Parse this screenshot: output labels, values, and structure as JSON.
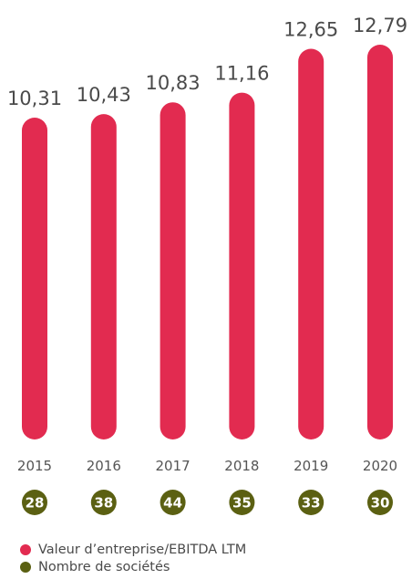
{
  "chart_data": {
    "type": "bar",
    "categories": [
      "2015",
      "2016",
      "2017",
      "2018",
      "2019",
      "2020"
    ],
    "series": [
      {
        "name": "Valeur d’entreprise/EBITDA LTM",
        "values": [
          10.31,
          10.43,
          10.83,
          11.16,
          12.65,
          12.79
        ],
        "labels": [
          "10,31",
          "10,43",
          "10,83",
          "11,16",
          "12,65",
          "12,79"
        ],
        "color": "#e22b50"
      },
      {
        "name": "Nombre de sociétés",
        "values": [
          28,
          38,
          44,
          35,
          33,
          30
        ],
        "color": "#5b6012"
      }
    ],
    "ylim": [
      0,
      12.79
    ],
    "grid": false,
    "legend_position": "bottom-left"
  }
}
